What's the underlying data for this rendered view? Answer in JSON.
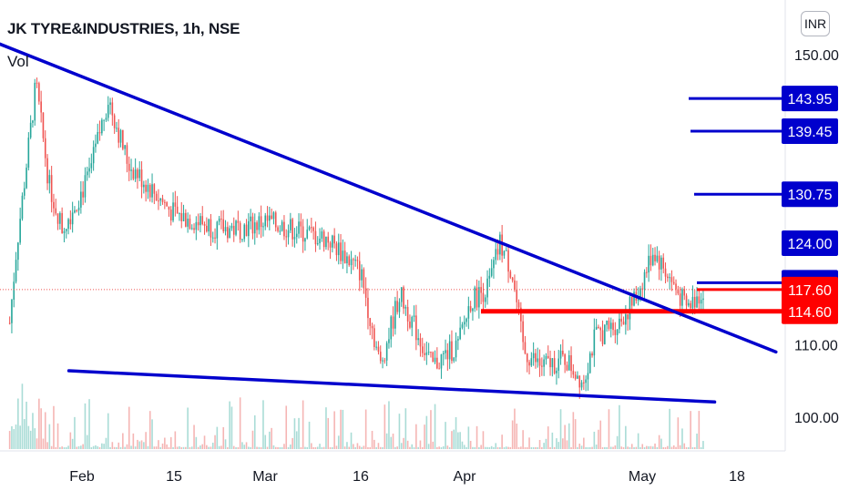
{
  "header": {
    "symbol_title": "JK TYRE&INDUSTRIES, 1h, NSE",
    "volume_label": "Vol",
    "currency": "INR"
  },
  "colors": {
    "up": "#26a69a",
    "down": "#ef5350",
    "trendline": "#0000cd",
    "level_blue": "#0000cd",
    "level_red": "#ff0000",
    "axis_text": "#131722"
  },
  "chart_data": {
    "type": "candlestick",
    "timeframe": "1h",
    "x_ticks": [
      "Feb",
      "15",
      "Mar",
      "16",
      "Apr",
      "May",
      "18"
    ],
    "y_ticks": [
      150.0,
      110.0,
      100.0
    ],
    "y_tick_labels": [
      "150.00",
      "110.00",
      "100.00"
    ],
    "ylim": [
      96.5,
      153.0
    ],
    "last_price": 117.6,
    "last_price_label": "117.60",
    "horizontal_levels": [
      {
        "value": 143.95,
        "label": "143.95",
        "color": "#0000cd"
      },
      {
        "value": 139.45,
        "label": "139.45",
        "color": "#0000cd"
      },
      {
        "value": 130.75,
        "label": "130.75",
        "color": "#0000cd"
      },
      {
        "value": 124.0,
        "label": "124.00",
        "color": "#0000cd"
      },
      {
        "value": 118.55,
        "label": "118.55",
        "color": "#0000cd"
      },
      {
        "value": 117.6,
        "label": "117.60",
        "color": "#ff0000"
      },
      {
        "value": 114.6,
        "label": "114.60",
        "color": "#ff0000"
      }
    ],
    "trendlines": [
      {
        "name": "upper-trendline",
        "from": {
          "x": "Jan 18",
          "y": 152.0
        },
        "to": {
          "x": "May 25",
          "y": 109.0
        }
      },
      {
        "name": "lower-trendline",
        "from": {
          "x": "Jan 30",
          "y": 106.4
        },
        "to": {
          "x": "May 14",
          "y": 102.1
        }
      }
    ],
    "price_path": [
      {
        "x": "Jan 21",
        "close": 113.0
      },
      {
        "x": "Jan 22",
        "close": 123.0
      },
      {
        "x": "Jan 25",
        "close": 146.0
      },
      {
        "x": "Jan 27",
        "close": 132.0
      },
      {
        "x": "Jan 29",
        "close": 126.0
      },
      {
        "x": "Feb 2",
        "close": 133.0
      },
      {
        "x": "Feb 5",
        "close": 144.0
      },
      {
        "x": "Feb 8",
        "close": 135.0
      },
      {
        "x": "Feb 15",
        "close": 128.0
      },
      {
        "x": "Feb 22",
        "close": 126.0
      },
      {
        "x": "Feb 25",
        "close": 126.0
      },
      {
        "x": "Mar 1",
        "close": 127.0
      },
      {
        "x": "Mar 5",
        "close": 126.0
      },
      {
        "x": "Mar 11",
        "close": 124.5
      },
      {
        "x": "Mar 16",
        "close": 120.0
      },
      {
        "x": "Mar 19",
        "close": 107.0
      },
      {
        "x": "Mar 22",
        "close": 117.0
      },
      {
        "x": "Mar 24",
        "close": 113.0
      },
      {
        "x": "Mar 27",
        "close": 107.0
      },
      {
        "x": "Mar 31",
        "close": 110.0
      },
      {
        "x": "Apr 2",
        "close": 116.0
      },
      {
        "x": "Apr 5",
        "close": 118.0
      },
      {
        "x": "Apr 7",
        "close": 124.0
      },
      {
        "x": "Apr 9",
        "close": 120.0
      },
      {
        "x": "Apr 11",
        "close": 109.0
      },
      {
        "x": "Apr 14",
        "close": 107.0
      },
      {
        "x": "Apr 18",
        "close": 108.0
      },
      {
        "x": "Apr 21",
        "close": 105.0
      },
      {
        "x": "Apr 23",
        "close": 111.0
      },
      {
        "x": "Apr 27",
        "close": 113.0
      },
      {
        "x": "Apr 30",
        "close": 116.5
      },
      {
        "x": "May 3",
        "close": 123.0
      },
      {
        "x": "May 6",
        "close": 119.0
      },
      {
        "x": "May 9",
        "close": 115.0
      },
      {
        "x": "May 12",
        "close": 117.6
      }
    ]
  }
}
